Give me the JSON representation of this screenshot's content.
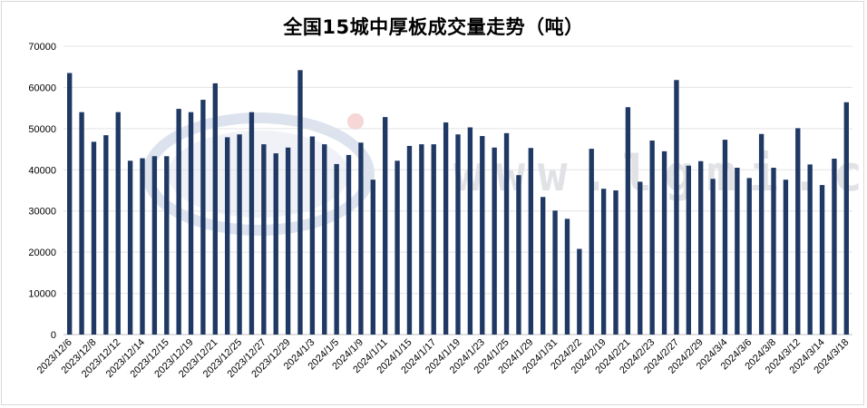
{
  "chart_data": {
    "type": "bar",
    "title": "全国15城中厚板成交量走势（吨）",
    "colors": {
      "bar": "#1f3864",
      "grid": "#e3e3e3"
    },
    "watermark": "www.lgmi.com",
    "ylim": [
      0,
      70000
    ],
    "yticks": [
      0,
      10000,
      20000,
      30000,
      40000,
      50000,
      60000,
      70000
    ],
    "grid": true,
    "categories": [
      "2023/12/6",
      "",
      "2023/12/8",
      "",
      "2023/12/12",
      "",
      "2023/12/14",
      "",
      "2023/12/15",
      "",
      "2023/12/19",
      "",
      "2023/12/21",
      "",
      "2023/12/25",
      "",
      "2023/12/27",
      "",
      "2023/12/29",
      "",
      "2024/1/3",
      "",
      "2024/1/5",
      "",
      "2024/1/9",
      "",
      "2024/1/11",
      "",
      "2024/1/15",
      "",
      "2024/1/17",
      "",
      "2024/1/19",
      "",
      "2024/1/23",
      "",
      "2024/1/25",
      "",
      "2024/1/29",
      "",
      "2024/1/31",
      "",
      "2024/2/2",
      "",
      "2024/2/19",
      "",
      "2024/2/21",
      "",
      "2024/2/23",
      "",
      "2024/2/27",
      "",
      "2024/2/29",
      "",
      "2024/3/4",
      "",
      "2024/3/6",
      "",
      "2024/3/8",
      "",
      "2024/3/12",
      "",
      "2024/3/14",
      "",
      "2024/3/18"
    ],
    "values": [
      63500,
      54000,
      46800,
      48400,
      54000,
      42200,
      42800,
      43300,
      43300,
      54800,
      54000,
      57000,
      61000,
      47900,
      48600,
      54000,
      46200,
      44000,
      45400,
      64200,
      48100,
      46200,
      41400,
      43600,
      46600,
      37600,
      52800,
      42200,
      45800,
      46200,
      46200,
      51500,
      48600,
      50300,
      48200,
      45400,
      48900,
      38700,
      45300,
      33400,
      30100,
      28100,
      20800,
      45100,
      35400,
      35000,
      55200,
      37100,
      47100,
      44500,
      61800,
      41000,
      42100,
      37800,
      47300,
      40500,
      38000,
      48700,
      40500,
      37600,
      50100,
      41300,
      36300,
      42700,
      56400
    ]
  }
}
